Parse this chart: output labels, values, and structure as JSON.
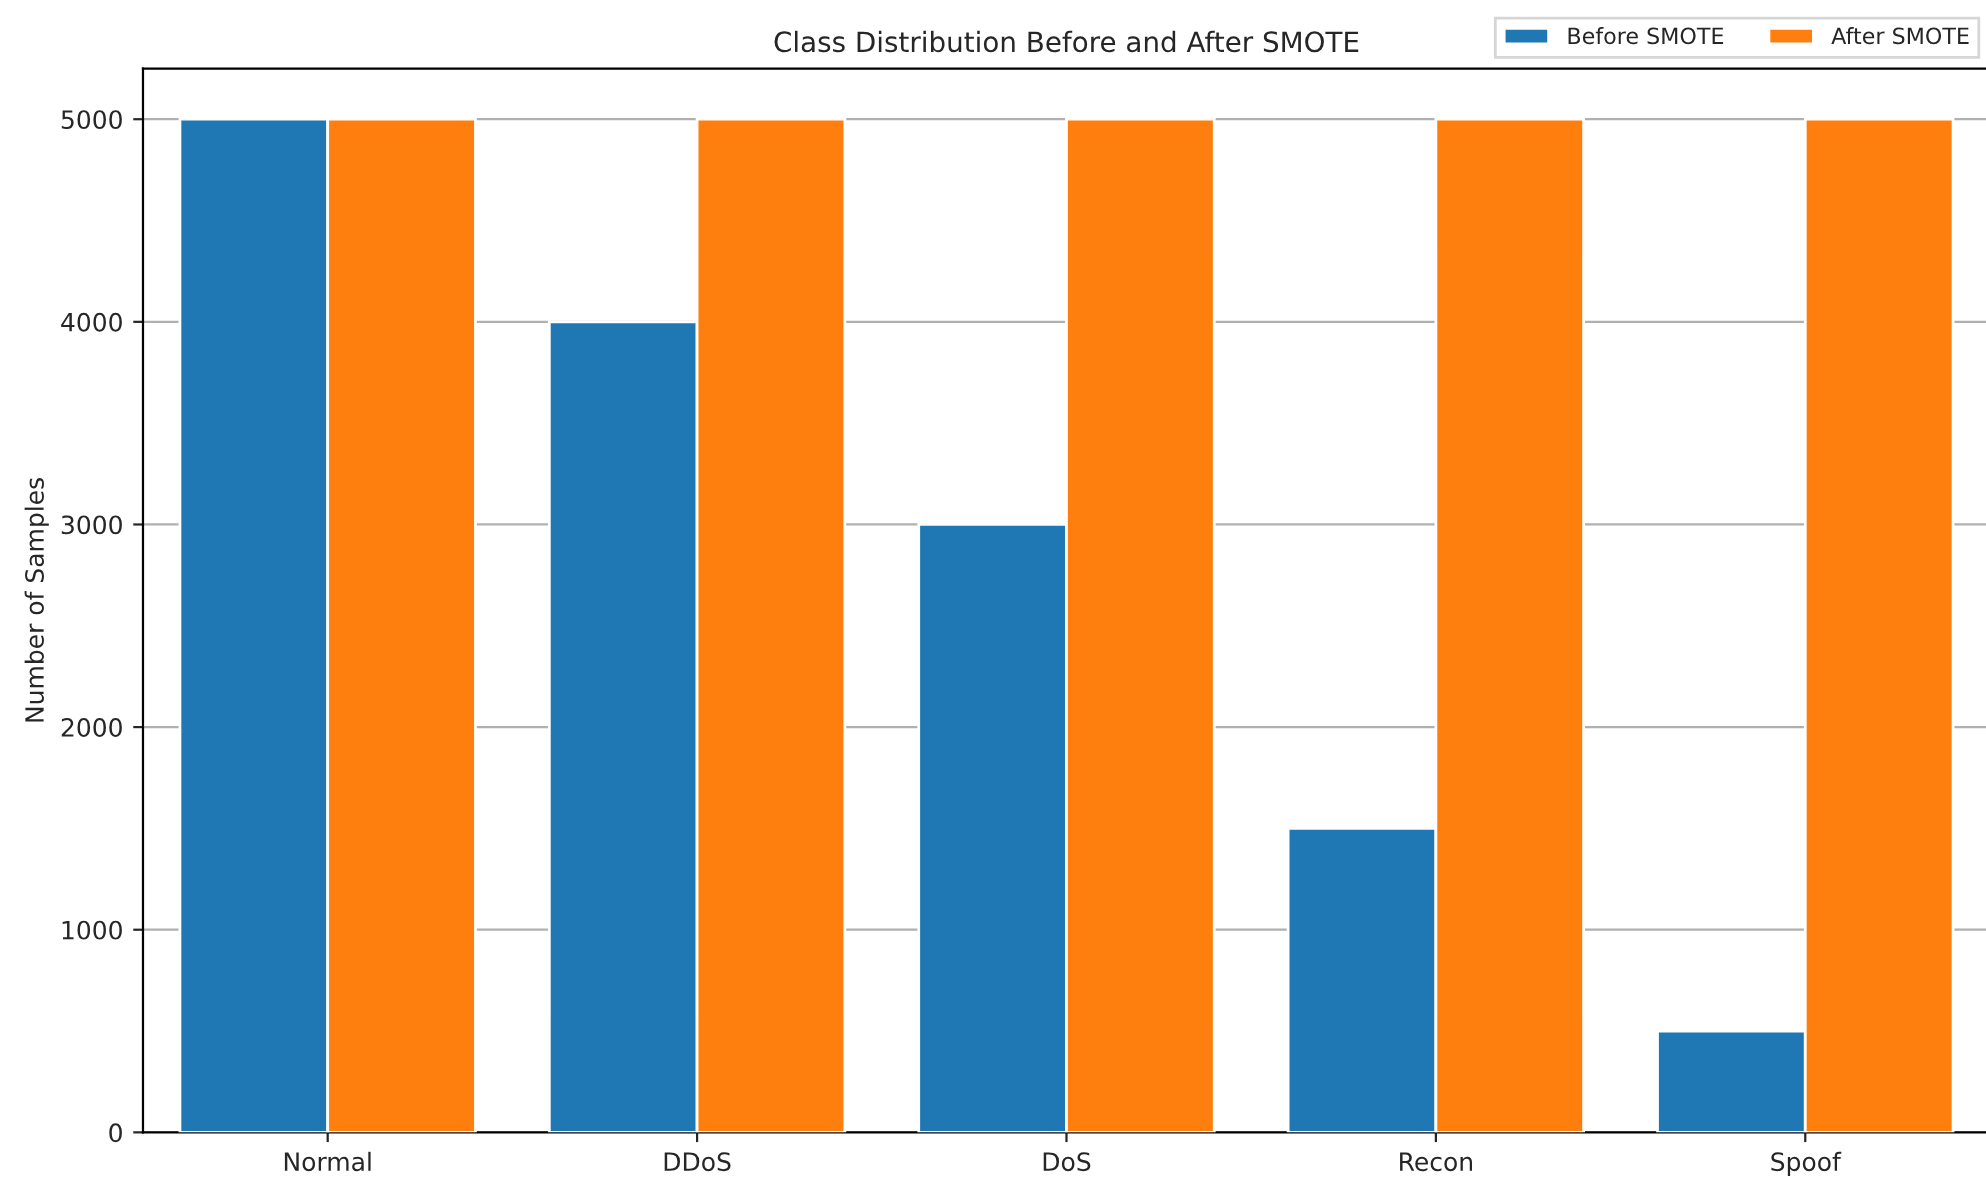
{
  "chart_data": {
    "type": "bar",
    "title": "Class Distribution Before and After SMOTE",
    "ylabel": "Number of Samples",
    "categories": [
      "Normal",
      "DDoS",
      "DoS",
      "Recon",
      "Spoof"
    ],
    "series": [
      {
        "name": "Before SMOTE",
        "color": "#1f77b4",
        "values": [
          5000,
          4000,
          3000,
          1500,
          500
        ]
      },
      {
        "name": "After SMOTE",
        "color": "#ff7f0e",
        "values": [
          5000,
          5000,
          5000,
          5000,
          5000
        ]
      }
    ],
    "ylim": [
      0,
      5250
    ],
    "yticks": [
      0,
      1000,
      2000,
      3000,
      4000,
      5000
    ],
    "grid": "y",
    "legend": "top right"
  }
}
